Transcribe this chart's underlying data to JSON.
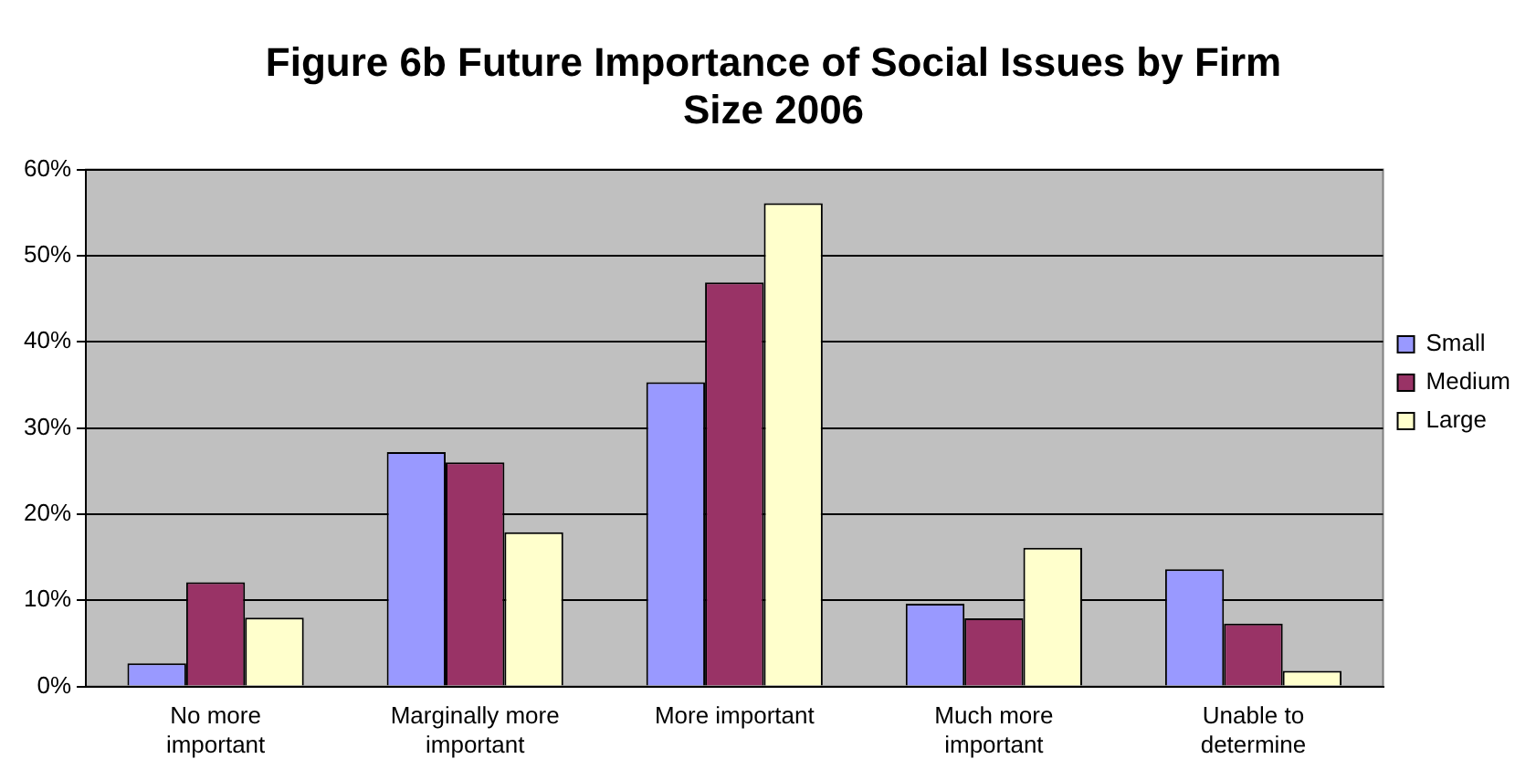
{
  "chart_data": {
    "type": "bar",
    "title": "Figure 6b Future Importance of Social Issues by Firm Size 2006",
    "categories": [
      "No more important",
      "Marginally more important",
      "More important",
      "Much more important",
      "Unable to determine"
    ],
    "series": [
      {
        "name": "Small",
        "color": "#9999ff",
        "values": [
          2.7,
          27.2,
          35.3,
          9.6,
          13.6
        ]
      },
      {
        "name": "Medium",
        "color": "#993366",
        "values": [
          12.1,
          26.0,
          46.9,
          7.9,
          7.3
        ]
      },
      {
        "name": "Large",
        "color": "#ffffcc",
        "values": [
          8.0,
          17.9,
          56.1,
          16.1,
          1.8
        ]
      }
    ],
    "ylim": [
      0,
      60
    ],
    "yticks": [
      {
        "value": 0,
        "label": "0%"
      },
      {
        "value": 10,
        "label": "10%"
      },
      {
        "value": 20,
        "label": "20%"
      },
      {
        "value": 30,
        "label": "30%"
      },
      {
        "value": 40,
        "label": "40%"
      },
      {
        "value": 50,
        "label": "50%"
      },
      {
        "value": 60,
        "label": "60%"
      }
    ],
    "grid": "y",
    "legend": "right"
  }
}
